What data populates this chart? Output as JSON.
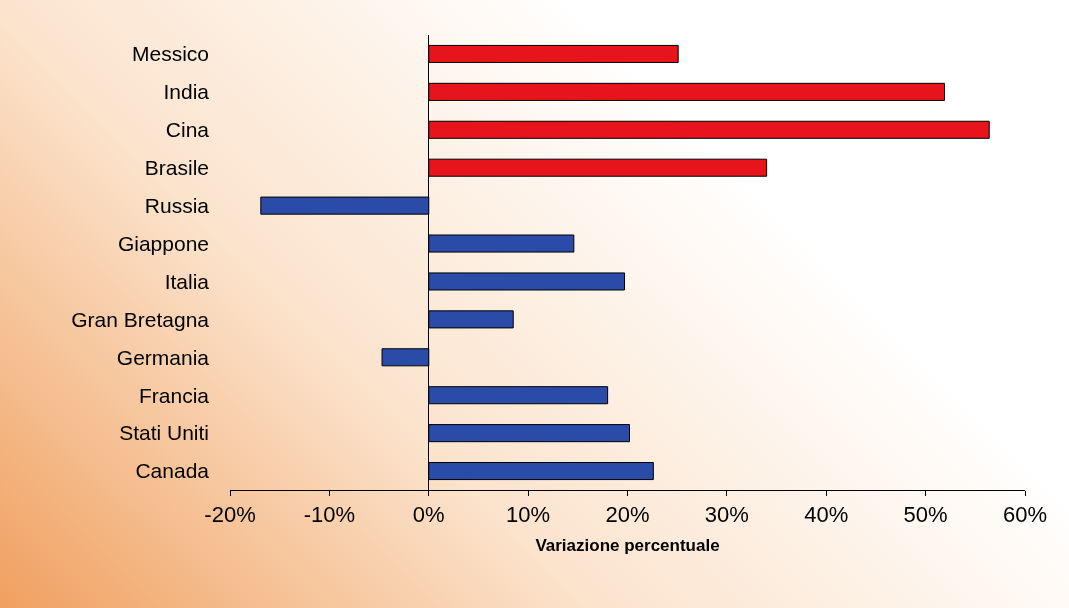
{
  "chart_data": {
    "type": "bar",
    "orientation": "horizontal",
    "xlabel": "Variazione percentuale",
    "categories": [
      "Messico",
      "India",
      "Cina",
      "Brasile",
      "Russia",
      "Giappone",
      "Italia",
      "Gran Bretagna",
      "Germania",
      "Francia",
      "Stati Uniti",
      "Canada"
    ],
    "values": [
      25.1,
      51.9,
      56.4,
      34,
      -16.9,
      14.6,
      19.7,
      8.5,
      -4.7,
      18,
      20.2,
      22.6
    ],
    "colors": [
      "#e8141c",
      "#e8141c",
      "#e8141c",
      "#e8141c",
      "#2b4ba8",
      "#2b4ba8",
      "#2b4ba8",
      "#2b4ba8",
      "#2b4ba8",
      "#2b4ba8",
      "#2b4ba8",
      "#2b4ba8"
    ],
    "xlim": [
      -20,
      60
    ],
    "xticks": [
      {
        "value": -20,
        "label": "-20%"
      },
      {
        "value": -10,
        "label": "-10%"
      },
      {
        "value": 0,
        "label": "0%"
      },
      {
        "value": 10,
        "label": "10%"
      },
      {
        "value": 20,
        "label": "20%"
      },
      {
        "value": 30,
        "label": "30%"
      },
      {
        "value": 40,
        "label": "40%"
      },
      {
        "value": 50,
        "label": "50%"
      },
      {
        "value": 60,
        "label": "60%"
      }
    ],
    "tick_labels": true
  }
}
